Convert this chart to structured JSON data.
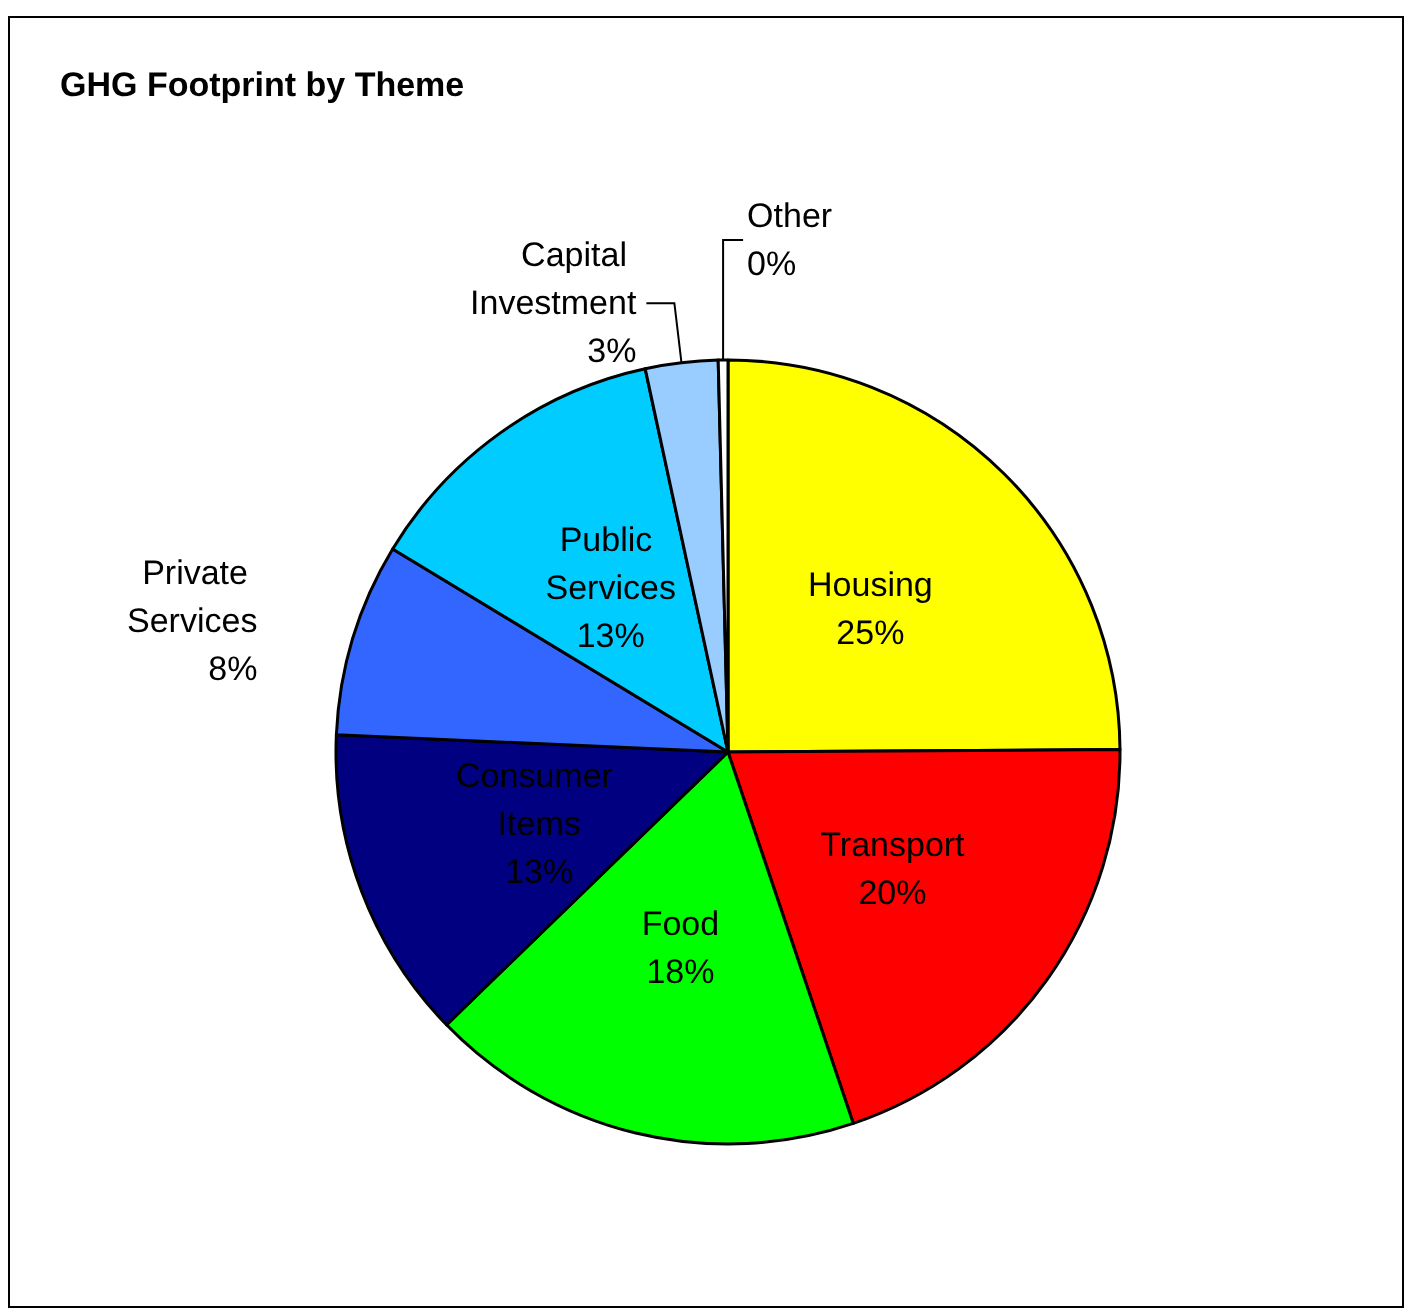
{
  "chart_data": {
    "type": "pie",
    "title": "GHG Footprint by Theme",
    "categories": [
      "Housing",
      "Transport",
      "Food",
      "Consumer Items",
      "Private Services",
      "Public Services",
      "Capital Investment",
      "Other"
    ],
    "values": [
      25,
      20,
      18,
      13,
      8,
      13,
      3,
      0.4
    ],
    "value_labels": [
      "25%",
      "20%",
      "18%",
      "13%",
      "8%",
      "13%",
      "3%",
      "0%"
    ],
    "colors": [
      "#ffff00",
      "#ff0000",
      "#00ff00",
      "#000080",
      "#3366ff",
      "#00ccff",
      "#99ccff",
      "#ffffff"
    ],
    "legend": false
  }
}
